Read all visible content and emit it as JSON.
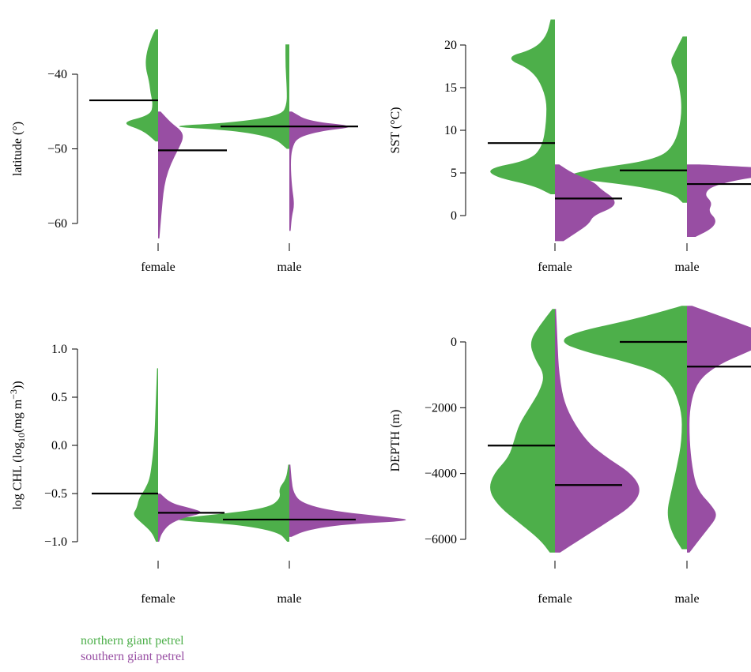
{
  "colors": {
    "northern": "#4daf4a",
    "southern": "#984ea3",
    "mean": "#000000"
  },
  "legend": {
    "northern": "northern giant petrel",
    "southern": "southern giant petrel"
  },
  "chart_data": [
    {
      "type": "split-violin",
      "id": "latitude",
      "ylabel": "latitude (°)",
      "categories": [
        "female",
        "male"
      ],
      "yticks": [
        -40,
        -50,
        -60
      ],
      "ylim": [
        -63,
        -34
      ],
      "series": [
        {
          "name": "northern giant petrel",
          "group": "northern",
          "means": [
            -43.5,
            -47.0
          ],
          "density": [
            [
              [
                -34,
                0.02
              ],
              [
                -35,
                0.05
              ],
              [
                -37,
                0.09
              ],
              [
                -39,
                0.1
              ],
              [
                -41,
                0.07
              ],
              [
                -42.5,
                0.06
              ],
              [
                -44,
                0.04
              ],
              [
                -45.5,
                0.06
              ],
              [
                -46.5,
                0.3
              ],
              [
                -47.5,
                0.12
              ],
              [
                -49,
                0.02
              ]
            ],
            [
              [
                -36,
                0.03
              ],
              [
                -39,
                0.03
              ],
              [
                -42,
                0.02
              ],
              [
                -44,
                0.02
              ],
              [
                -45.5,
                0.06
              ],
              [
                -46.5,
                0.45
              ],
              [
                -47,
                1.0
              ],
              [
                -47.5,
                0.45
              ],
              [
                -48.5,
                0.12
              ],
              [
                -50,
                0.02
              ]
            ]
          ]
        },
        {
          "name": "southern giant petrel",
          "group": "southern",
          "means": [
            -50.2,
            -47.0
          ],
          "density": [
            [
              [
                -45,
                0.02
              ],
              [
                -46.5,
                0.1
              ],
              [
                -47.5,
                0.18
              ],
              [
                -48.5,
                0.2
              ],
              [
                -50,
                0.16
              ],
              [
                -52,
                0.1
              ],
              [
                -54,
                0.06
              ],
              [
                -56,
                0.04
              ],
              [
                -58,
                0.03
              ],
              [
                -60,
                0.02
              ],
              [
                -62,
                0.01
              ]
            ],
            [
              [
                -45,
                0.02
              ],
              [
                -46.3,
                0.15
              ],
              [
                -47,
                0.55
              ],
              [
                -47.6,
                0.25
              ],
              [
                -48.5,
                0.06
              ],
              [
                -50,
                0.02
              ],
              [
                -52,
                0.01
              ],
              [
                -55,
                0.02
              ],
              [
                -57.5,
                0.04
              ],
              [
                -59,
                0.02
              ],
              [
                -61,
                0.01
              ]
            ]
          ]
        }
      ]
    },
    {
      "type": "split-violin",
      "id": "sst",
      "ylabel": "SST (°C)",
      "categories": [
        "female",
        "male"
      ],
      "yticks": [
        0,
        5,
        10,
        15,
        20
      ],
      "ylim": [
        -3,
        23
      ],
      "series": [
        {
          "name": "northern giant petrel",
          "group": "northern",
          "means": [
            8.5,
            5.3
          ],
          "density": [
            [
              [
                23,
                0.01
              ],
              [
                21,
                0.02
              ],
              [
                19.5,
                0.05
              ],
              [
                18.5,
                0.12
              ],
              [
                17,
                0.05
              ],
              [
                14,
                0.02
              ],
              [
                11,
                0.02
              ],
              [
                8,
                0.03
              ],
              [
                6.5,
                0.06
              ],
              [
                5.5,
                0.16
              ],
              [
                4.5,
                0.14
              ],
              [
                3.5,
                0.05
              ],
              [
                2.5,
                0.01
              ]
            ],
            [
              [
                21,
                0.01
              ],
              [
                19,
                0.03
              ],
              [
                18,
                0.04
              ],
              [
                16,
                0.02
              ],
              [
                12,
                0.01
              ],
              [
                8,
                0.03
              ],
              [
                6.5,
                0.08
              ],
              [
                5.5,
                0.22
              ],
              [
                4.5,
                0.3
              ],
              [
                3.5,
                0.12
              ],
              [
                2.5,
                0.03
              ],
              [
                1.5,
                0.01
              ]
            ]
          ]
        },
        {
          "name": "southern giant petrel",
          "group": "southern",
          "means": [
            2.0,
            3.7
          ],
          "density": [
            [
              [
                6,
                0.01
              ],
              [
                5,
                0.04
              ],
              [
                4,
                0.09
              ],
              [
                3,
                0.11
              ],
              [
                2,
                0.14
              ],
              [
                1,
                0.14
              ],
              [
                0,
                0.09
              ],
              [
                -1,
                0.08
              ],
              [
                -2,
                0.05
              ],
              [
                -3,
                0.02
              ]
            ],
            [
              [
                6,
                0.03
              ],
              [
                5.3,
                0.3
              ],
              [
                4.5,
                0.15
              ],
              [
                3.5,
                0.06
              ],
              [
                2.5,
                0.04
              ],
              [
                1.5,
                0.06
              ],
              [
                0.5,
                0.05
              ],
              [
                -0.5,
                0.07
              ],
              [
                -1.5,
                0.06
              ],
              [
                -2.5,
                0.02
              ]
            ]
          ]
        }
      ]
    },
    {
      "type": "split-violin",
      "id": "chl",
      "ylabel": "log CHL (log",
      "ylabel_sub": "10",
      "ylabel_mid": "(mg m",
      "ylabel_sup": "−3",
      "ylabel_end": "))",
      "categories": [
        "female",
        "male"
      ],
      "yticks": [
        1.0,
        0.5,
        0.0,
        -0.5,
        -1.0
      ],
      "ylim": [
        -1.12,
        0.85
      ],
      "series": [
        {
          "name": "northern giant petrel",
          "group": "northern",
          "means": [
            -0.5,
            -0.77
          ],
          "density": [
            [
              [
                0.8,
                0.005
              ],
              [
                0.5,
                0.01
              ],
              [
                0.2,
                0.015
              ],
              [
                0.0,
                0.02
              ],
              [
                -0.2,
                0.03
              ],
              [
                -0.35,
                0.04
              ],
              [
                -0.45,
                0.06
              ],
              [
                -0.55,
                0.09
              ],
              [
                -0.65,
                0.1
              ],
              [
                -0.72,
                0.12
              ],
              [
                -0.8,
                0.08
              ],
              [
                -0.9,
                0.03
              ],
              [
                -1.0,
                0.01
              ]
            ],
            [
              [
                -0.2,
                0.005
              ],
              [
                -0.35,
                0.015
              ],
              [
                -0.45,
                0.05
              ],
              [
                -0.55,
                0.04
              ],
              [
                -0.65,
                0.1
              ],
              [
                -0.72,
                0.35
              ],
              [
                -0.77,
                0.6
              ],
              [
                -0.82,
                0.25
              ],
              [
                -0.9,
                0.05
              ],
              [
                -1.0,
                0.01
              ]
            ]
          ]
        },
        {
          "name": "southern giant petrel",
          "group": "southern",
          "means": [
            -0.7,
            -0.77
          ],
          "density": [
            [
              [
                -0.5,
                0.01
              ],
              [
                -0.6,
                0.06
              ],
              [
                -0.65,
                0.15
              ],
              [
                -0.7,
                0.22
              ],
              [
                -0.75,
                0.12
              ],
              [
                -0.82,
                0.05
              ],
              [
                -0.92,
                0.015
              ],
              [
                -1.0,
                0.005
              ]
            ],
            [
              [
                -0.2,
                0.005
              ],
              [
                -0.35,
                0.01
              ],
              [
                -0.5,
                0.02
              ],
              [
                -0.6,
                0.06
              ],
              [
                -0.68,
                0.2
              ],
              [
                -0.74,
                0.45
              ],
              [
                -0.78,
                0.6
              ],
              [
                -0.82,
                0.25
              ],
              [
                -0.88,
                0.08
              ],
              [
                -0.95,
                0.01
              ]
            ]
          ]
        }
      ]
    },
    {
      "type": "split-violin",
      "id": "depth",
      "ylabel": "DEPTH (m)",
      "categories": [
        "female",
        "male"
      ],
      "yticks": [
        0,
        -2000,
        -4000,
        -6000
      ],
      "ylim": [
        -6500,
        1200
      ],
      "series": [
        {
          "name": "northern giant petrel",
          "group": "northern",
          "means": [
            -3150,
            0
          ],
          "density": [
            [
              [
                1000,
                0.005
              ],
              [
                500,
                0.03
              ],
              [
                0,
                0.05
              ],
              [
                -500,
                0.04
              ],
              [
                -1000,
                0.02
              ],
              [
                -1500,
                0.03
              ],
              [
                -2000,
                0.05
              ],
              [
                -2500,
                0.07
              ],
              [
                -3000,
                0.08
              ],
              [
                -3500,
                0.09
              ],
              [
                -4000,
                0.12
              ],
              [
                -4500,
                0.13
              ],
              [
                -5000,
                0.11
              ],
              [
                -5500,
                0.07
              ],
              [
                -6000,
                0.03
              ],
              [
                -6400,
                0.01
              ]
            ],
            [
              [
                1100,
                0.01
              ],
              [
                700,
                0.1
              ],
              [
                300,
                0.22
              ],
              [
                0,
                0.25
              ],
              [
                -300,
                0.2
              ],
              [
                -600,
                0.12
              ],
              [
                -1000,
                0.04
              ],
              [
                -2000,
                0.01
              ],
              [
                -3000,
                0.01
              ],
              [
                -3800,
                0.02
              ],
              [
                -4500,
                0.03
              ],
              [
                -5200,
                0.04
              ],
              [
                -5800,
                0.03
              ],
              [
                -6300,
                0.01
              ]
            ]
          ]
        },
        {
          "name": "southern giant petrel",
          "group": "southern",
          "means": [
            -4350,
            -750
          ],
          "density": [
            [
              [
                1000,
                0.002
              ],
              [
                0,
                0.005
              ],
              [
                -1000,
                0.008
              ],
              [
                -2000,
                0.02
              ],
              [
                -3000,
                0.06
              ],
              [
                -3500,
                0.1
              ],
              [
                -4000,
                0.15
              ],
              [
                -4500,
                0.17
              ],
              [
                -5000,
                0.15
              ],
              [
                -5500,
                0.1
              ],
              [
                -6000,
                0.05
              ],
              [
                -6400,
                0.01
              ]
            ],
            [
              [
                1100,
                0.01
              ],
              [
                700,
                0.08
              ],
              [
                300,
                0.15
              ],
              [
                0,
                0.16
              ],
              [
                -300,
                0.12
              ],
              [
                -700,
                0.06
              ],
              [
                -1200,
                0.02
              ],
              [
                -2000,
                0.005
              ],
              [
                -3000,
                0.005
              ],
              [
                -3800,
                0.01
              ],
              [
                -4500,
                0.02
              ],
              [
                -5000,
                0.05
              ],
              [
                -5300,
                0.06
              ],
              [
                -5700,
                0.04
              ],
              [
                -6100,
                0.02
              ],
              [
                -6400,
                0.005
              ]
            ]
          ]
        }
      ]
    }
  ]
}
